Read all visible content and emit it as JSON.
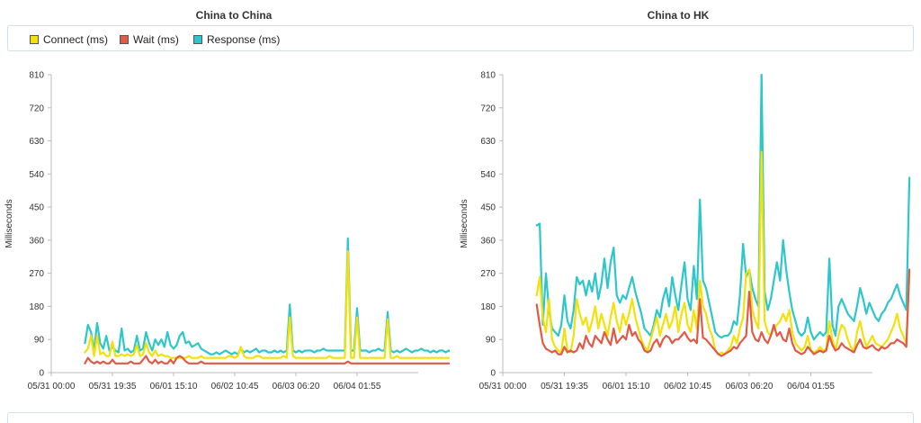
{
  "legend": {
    "items": [
      {
        "label": "Connect (ms)",
        "color": "#f2e10a"
      },
      {
        "label": "Wait (ms)",
        "color": "#e05a47"
      },
      {
        "label": "Response (ms)",
        "color": "#2ec7c9"
      }
    ]
  },
  "chart_data": [
    {
      "type": "line",
      "title": "China to China",
      "ylabel": "Milliseconds",
      "ylim": [
        0,
        810
      ],
      "yticks": [
        0,
        90,
        180,
        270,
        360,
        450,
        540,
        630,
        720,
        810
      ],
      "xticks": [
        "05/31 00:00",
        "05/31 19:35",
        "06/01 15:10",
        "06/02 10:45",
        "06/03 06:20",
        "06/04 01:55"
      ],
      "grid": false,
      "x_start": 0.55,
      "x_step": 0.05,
      "series": [
        {
          "name": "Connect (ms)",
          "color": "#f2e10a",
          "values": [
            55,
            65,
            100,
            45,
            100,
            50,
            55,
            45,
            45,
            85,
            45,
            45,
            50,
            45,
            50,
            45,
            50,
            75,
            45,
            50,
            80,
            55,
            45,
            60,
            45,
            50,
            45,
            45,
            40,
            40,
            40,
            40,
            40,
            40,
            45,
            40,
            40,
            40,
            45,
            40,
            40,
            40,
            40,
            40,
            40,
            40,
            40,
            45,
            45,
            40,
            45,
            70,
            45,
            40,
            40,
            40,
            45,
            45,
            40,
            40,
            40,
            40,
            40,
            40,
            40,
            45,
            40,
            150,
            45,
            40,
            40,
            40,
            40,
            40,
            40,
            40,
            40,
            40,
            40,
            40,
            45,
            40,
            40,
            40,
            40,
            40,
            330,
            40,
            40,
            150,
            40,
            40,
            40,
            40,
            40,
            40,
            40,
            40,
            40,
            145,
            40,
            40,
            45,
            40,
            40,
            40,
            40,
            40,
            40,
            40,
            40,
            40,
            40,
            40,
            40,
            40,
            40,
            40,
            40,
            40,
            40,
            40
          ]
        },
        {
          "name": "Wait (ms)",
          "color": "#e05a47",
          "values": [
            25,
            40,
            30,
            25,
            30,
            25,
            30,
            25,
            25,
            35,
            25,
            25,
            25,
            25,
            25,
            30,
            25,
            25,
            25,
            35,
            45,
            30,
            25,
            35,
            25,
            30,
            25,
            25,
            35,
            25,
            40,
            45,
            40,
            30,
            25,
            25,
            25,
            25,
            30,
            25,
            25,
            25,
            25,
            25,
            25,
            25,
            25,
            25,
            25,
            25,
            25,
            25,
            25,
            25,
            25,
            25,
            25,
            25,
            25,
            25,
            25,
            25,
            25,
            25,
            25,
            25,
            25,
            25,
            25,
            25,
            25,
            25,
            25,
            25,
            25,
            25,
            25,
            25,
            25,
            25,
            25,
            25,
            25,
            25,
            25,
            25,
            30,
            25,
            25,
            25,
            25,
            25,
            25,
            25,
            25,
            25,
            25,
            25,
            25,
            25,
            25,
            25,
            25,
            25,
            25,
            25,
            25,
            25,
            25,
            25,
            25,
            25,
            25,
            25,
            25,
            25,
            25,
            25,
            25,
            25,
            25,
            25
          ]
        },
        {
          "name": "Response (ms)",
          "color": "#2ec7c9",
          "values": [
            80,
            130,
            110,
            60,
            135,
            80,
            65,
            100,
            60,
            70,
            60,
            55,
            120,
            60,
            65,
            55,
            60,
            100,
            60,
            65,
            110,
            80,
            60,
            90,
            75,
            90,
            70,
            110,
            75,
            65,
            75,
            100,
            110,
            80,
            85,
            70,
            75,
            80,
            65,
            60,
            55,
            50,
            50,
            55,
            50,
            55,
            60,
            55,
            50,
            55,
            50,
            65,
            55,
            60,
            55,
            60,
            65,
            55,
            60,
            60,
            55,
            55,
            60,
            55,
            60,
            55,
            60,
            185,
            60,
            55,
            60,
            55,
            60,
            60,
            60,
            55,
            60,
            60,
            65,
            60,
            60,
            60,
            60,
            60,
            60,
            60,
            365,
            60,
            60,
            175,
            60,
            60,
            60,
            55,
            60,
            60,
            65,
            60,
            60,
            165,
            60,
            55,
            60,
            55,
            60,
            65,
            60,
            55,
            60,
            60,
            65,
            60,
            60,
            55,
            60,
            55,
            60,
            60,
            55,
            60,
            55,
            50
          ]
        }
      ]
    },
    {
      "type": "line",
      "title": "China to HK",
      "ylabel": "Milliseconds",
      "ylim": [
        0,
        810
      ],
      "yticks": [
        0,
        90,
        180,
        270,
        360,
        450,
        540,
        630,
        720,
        810
      ],
      "xticks": [
        "05/31 00:00",
        "05/31 19:35",
        "06/01 15:10",
        "06/02 10:45",
        "06/03 06:20",
        "06/04 01:55"
      ],
      "grid": false,
      "x_start": 0.55,
      "x_step": 0.05,
      "series": [
        {
          "name": "Connect (ms)",
          "color": "#f2e10a",
          "values": [
            210,
            260,
            150,
            110,
            200,
            90,
            70,
            60,
            55,
            120,
            60,
            55,
            100,
            200,
            160,
            130,
            150,
            110,
            140,
            180,
            120,
            160,
            130,
            100,
            150,
            190,
            140,
            110,
            160,
            130,
            160,
            200,
            150,
            120,
            90,
            70,
            60,
            90,
            120,
            150,
            100,
            130,
            160,
            120,
            140,
            180,
            110,
            160,
            190,
            130,
            110,
            170,
            120,
            250,
            180,
            160,
            120,
            100,
            60,
            50,
            55,
            50,
            60,
            70,
            100,
            80,
            120,
            150,
            270,
            280,
            170,
            140,
            120,
            600,
            140,
            110,
            100,
            120,
            130,
            140,
            160,
            140,
            170,
            110,
            80,
            70,
            60,
            70,
            100,
            60,
            55,
            60,
            70,
            60,
            65,
            140,
            90,
            60,
            100,
            130,
            120,
            90,
            70,
            60,
            110,
            140,
            100,
            70,
            85,
            100,
            80,
            75,
            70,
            80,
            90,
            110,
            130,
            160,
            120,
            100,
            80,
            270
          ]
        },
        {
          "name": "Wait (ms)",
          "color": "#e05a47",
          "values": [
            185,
            130,
            80,
            65,
            60,
            55,
            60,
            50,
            50,
            70,
            55,
            60,
            55,
            60,
            80,
            65,
            100,
            80,
            70,
            100,
            90,
            80,
            110,
            90,
            75,
            120,
            80,
            90,
            100,
            90,
            130,
            100,
            110,
            90,
            80,
            60,
            55,
            60,
            80,
            90,
            70,
            90,
            100,
            95,
            80,
            90,
            90,
            100,
            110,
            95,
            85,
            90,
            80,
            200,
            95,
            90,
            80,
            70,
            60,
            50,
            45,
            50,
            55,
            60,
            70,
            65,
            80,
            90,
            100,
            220,
            110,
            90,
            85,
            110,
            90,
            80,
            100,
            130,
            100,
            110,
            90,
            85,
            120,
            80,
            60,
            55,
            50,
            55,
            70,
            60,
            50,
            55,
            60,
            55,
            60,
            100,
            75,
            60,
            65,
            80,
            70,
            65,
            60,
            55,
            75,
            90,
            70,
            65,
            70,
            75,
            65,
            60,
            70,
            65,
            70,
            80,
            80,
            90,
            85,
            80,
            70,
            280
          ]
        },
        {
          "name": "Response (ms)",
          "color": "#2ec7c9",
          "values": [
            400,
            405,
            130,
            270,
            170,
            120,
            110,
            100,
            130,
            210,
            140,
            120,
            170,
            260,
            240,
            250,
            210,
            250,
            220,
            270,
            200,
            240,
            310,
            230,
            300,
            340,
            210,
            190,
            210,
            200,
            230,
            260,
            220,
            190,
            160,
            120,
            110,
            100,
            130,
            170,
            150,
            200,
            230,
            180,
            260,
            210,
            170,
            240,
            300,
            200,
            170,
            290,
            200,
            470,
            250,
            230,
            190,
            150,
            110,
            100,
            95,
            100,
            100,
            110,
            140,
            130,
            210,
            350,
            260,
            280,
            230,
            200,
            180,
            810,
            220,
            170,
            200,
            250,
            300,
            250,
            360,
            280,
            220,
            170,
            140,
            110,
            100,
            110,
            150,
            110,
            90,
            100,
            110,
            100,
            110,
            310,
            130,
            100,
            180,
            200,
            180,
            160,
            150,
            140,
            180,
            230,
            200,
            160,
            190,
            170,
            150,
            140,
            160,
            170,
            190,
            200,
            220,
            240,
            210,
            190,
            170,
            530
          ]
        }
      ]
    }
  ]
}
